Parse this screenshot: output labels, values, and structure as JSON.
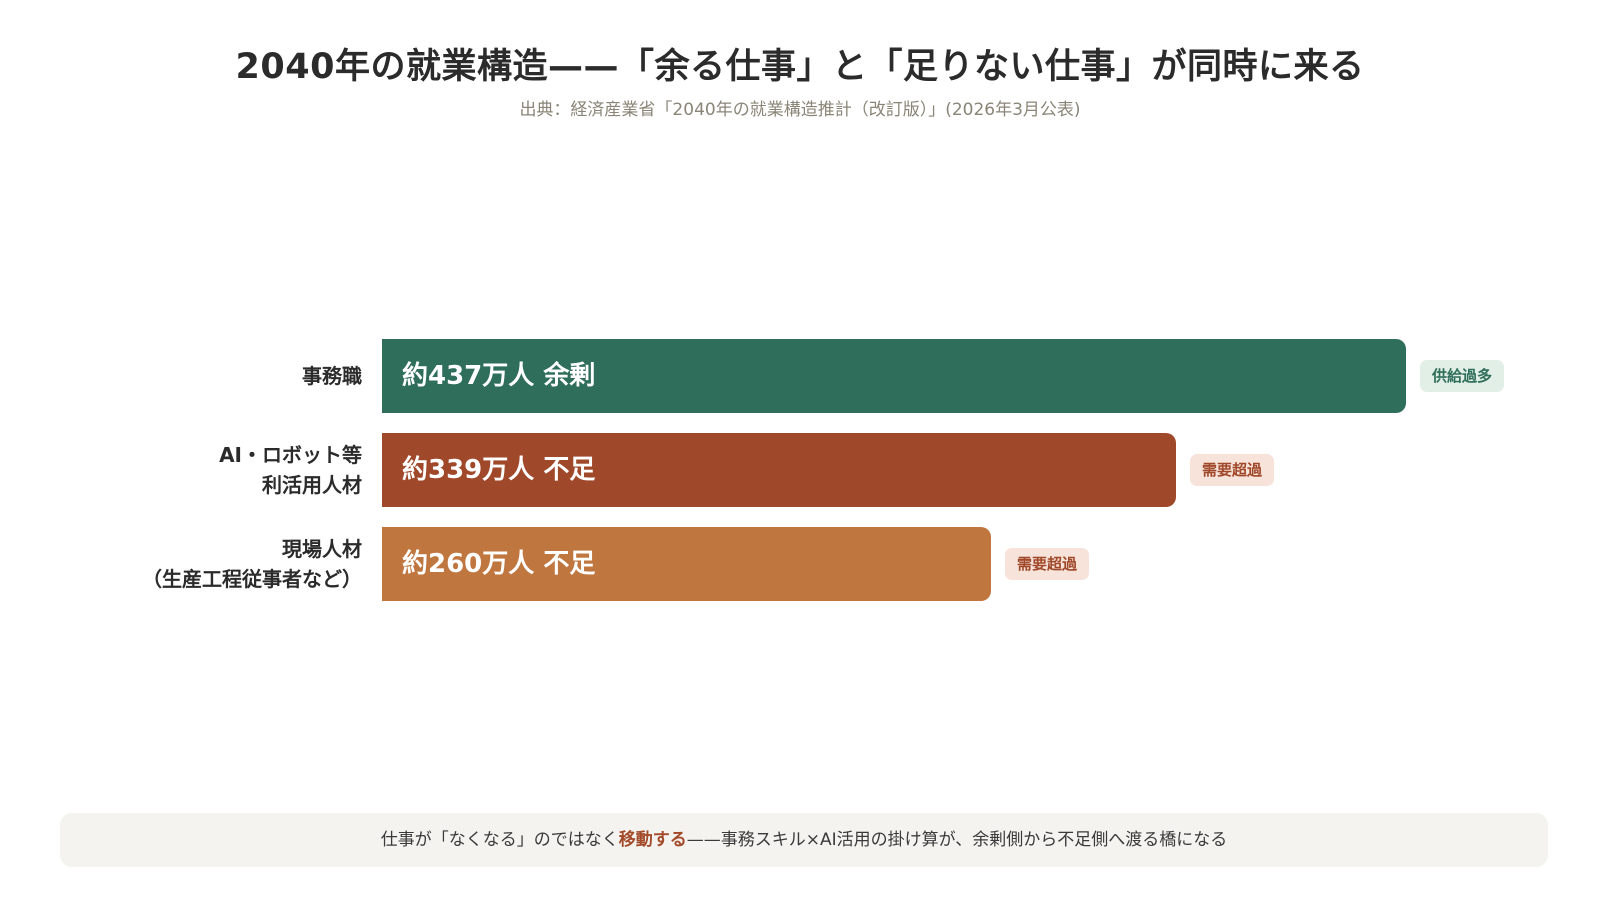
{
  "header": {
    "title": "2040年の就業構造——「余る仕事」と「足りない仕事」が同時に来る",
    "subtitle": "出典：経済産業省「2040年の就業構造推計（改訂版）」(2026年3月公表)"
  },
  "chart_data": {
    "type": "bar",
    "orientation": "horizontal",
    "categories": [
      [
        "事務職"
      ],
      [
        "AI・ロボット等",
        "利活用人材"
      ],
      [
        "現場人材",
        "（生産工程従事者など）"
      ]
    ],
    "values": [
      437,
      339,
      260
    ],
    "unit": "万人",
    "bar_labels": [
      "約437万人 余剰",
      "約339万人 不足",
      "約260万人 不足"
    ],
    "badges": [
      "供給過多",
      "需要超過",
      "需要超過"
    ],
    "bar_colors": [
      "#2f6e5a",
      "#a0482a",
      "#c0763f"
    ],
    "badge_bg_colors": [
      "#e1efe7",
      "#f7e3da",
      "#f7e3da"
    ],
    "badge_text_colors": [
      "#2f6e5a",
      "#a0482a",
      "#a0482a"
    ],
    "xlim": [
      0,
      437
    ]
  },
  "footer": {
    "text_before": "仕事が「なくなる」のではなく",
    "highlight": "移動する",
    "text_after": "——事務スキル×AI活用の掛け算が、余剰側から不足側へ渡る橋になる"
  }
}
